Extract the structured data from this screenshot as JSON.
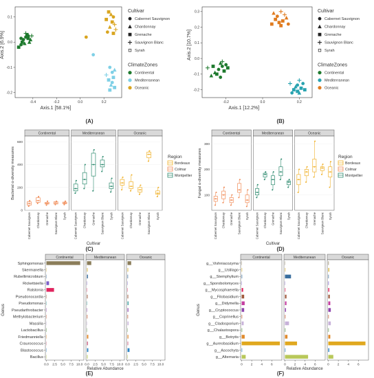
{
  "panel_labels": [
    "(A)",
    "(B)",
    "(C)",
    "(D)",
    "(E)",
    "(F)"
  ],
  "colors": {
    "Continental": "#1f7a2e",
    "Mediterranean": "#7fd0e6",
    "Oceanic": "#d9a520",
    "Mediterranean_B": "#29a3b0",
    "Oceanic_B": "#e07b1f",
    "Bordeaux": "#f0b12a",
    "Colmar": "#f08a55",
    "Montpellier": "#2e8b6f"
  },
  "chart_data": [
    {
      "id": "A",
      "type": "scatter",
      "xlabel": "Axis.1   [58.1%]",
      "ylabel": "Axis.2   [6.9%]",
      "xlim": [
        -0.55,
        0.35
      ],
      "ylim": [
        -0.22,
        0.14
      ],
      "xticks": [
        -0.4,
        -0.2,
        0.0,
        0.2
      ],
      "yticks": [
        0.1,
        0.0,
        -0.1,
        -0.2
      ],
      "xticklabels": [
        "-0.4",
        "-0.2",
        "0.0",
        "0.2"
      ],
      "yticklabels": [
        "0.1",
        "0.0",
        "-0.1",
        "-0.2"
      ],
      "legend_cultivar_title": "Cultivar",
      "legend_cultivar": [
        "Cabernet Sauvignon",
        "Chardonnay",
        "Grenache",
        "Sauvignon Blanc",
        "Syrah"
      ],
      "legend_climate_title": "ClimateZones",
      "legend_climate": [
        "Continental",
        "Mediterranean",
        "Oceanic"
      ],
      "points": [
        {
          "x": -0.46,
          "y": 0.02,
          "c": "Continental",
          "s": "circle"
        },
        {
          "x": -0.48,
          "y": 0.01,
          "c": "Continental",
          "s": "circle"
        },
        {
          "x": -0.44,
          "y": 0.025,
          "c": "Continental",
          "s": "circle"
        },
        {
          "x": -0.5,
          "y": -0.01,
          "c": "Continental",
          "s": "circle"
        },
        {
          "x": -0.43,
          "y": 0.0,
          "c": "Continental",
          "s": "triangle"
        },
        {
          "x": -0.47,
          "y": -0.005,
          "c": "Continental",
          "s": "triangle"
        },
        {
          "x": -0.42,
          "y": 0.01,
          "c": "Continental",
          "s": "triangle"
        },
        {
          "x": -0.49,
          "y": 0.0,
          "c": "Continental",
          "s": "square"
        },
        {
          "x": -0.45,
          "y": 0.03,
          "c": "Continental",
          "s": "square"
        },
        {
          "x": -0.52,
          "y": -0.02,
          "c": "Continental",
          "s": "square"
        },
        {
          "x": -0.41,
          "y": 0.025,
          "c": "Continental",
          "s": "plus"
        },
        {
          "x": -0.46,
          "y": 0.035,
          "c": "Continental",
          "s": "plus"
        },
        {
          "x": -0.44,
          "y": 0.015,
          "c": "Continental",
          "s": "square"
        },
        {
          "x": -0.5,
          "y": 0.015,
          "c": "Continental",
          "s": "circle"
        },
        {
          "x": 0.25,
          "y": -0.1,
          "c": "Mediterranean",
          "s": "circle"
        },
        {
          "x": 0.27,
          "y": -0.12,
          "c": "Mediterranean",
          "s": "circle"
        },
        {
          "x": 0.24,
          "y": -0.15,
          "c": "Mediterranean",
          "s": "square"
        },
        {
          "x": 0.28,
          "y": -0.14,
          "c": "Mediterranean",
          "s": "square"
        },
        {
          "x": 0.26,
          "y": -0.17,
          "c": "Mediterranean",
          "s": "triangle"
        },
        {
          "x": 0.29,
          "y": -0.11,
          "c": "Mediterranean",
          "s": "triangle"
        },
        {
          "x": 0.25,
          "y": -0.19,
          "c": "Mediterranean",
          "s": "square"
        },
        {
          "x": 0.22,
          "y": -0.13,
          "c": "Mediterranean",
          "s": "plus"
        },
        {
          "x": 0.27,
          "y": -0.16,
          "c": "Mediterranean",
          "s": "circle"
        },
        {
          "x": 0.29,
          "y": -0.18,
          "c": "Mediterranean",
          "s": "square"
        },
        {
          "x": 0.11,
          "y": -0.05,
          "c": "Mediterranean",
          "s": "circle"
        },
        {
          "x": 0.24,
          "y": 0.12,
          "c": "Oceanic",
          "s": "square"
        },
        {
          "x": 0.26,
          "y": 0.11,
          "c": "Oceanic",
          "s": "triangle"
        },
        {
          "x": 0.28,
          "y": 0.1,
          "c": "Oceanic",
          "s": "circle"
        },
        {
          "x": 0.22,
          "y": 0.09,
          "c": "Oceanic",
          "s": "square"
        },
        {
          "x": 0.27,
          "y": 0.08,
          "c": "Oceanic",
          "s": "square"
        },
        {
          "x": 0.25,
          "y": 0.06,
          "c": "Oceanic",
          "s": "triangle"
        },
        {
          "x": 0.29,
          "y": 0.07,
          "c": "Oceanic",
          "s": "plus"
        },
        {
          "x": 0.3,
          "y": 0.05,
          "c": "Oceanic",
          "s": "plus"
        },
        {
          "x": 0.23,
          "y": 0.04,
          "c": "Oceanic",
          "s": "circle"
        },
        {
          "x": 0.28,
          "y": 0.035,
          "c": "Oceanic",
          "s": "square"
        },
        {
          "x": 0.05,
          "y": 0.02,
          "c": "Oceanic",
          "s": "circle"
        }
      ]
    },
    {
      "id": "B",
      "type": "scatter",
      "xlabel": "Axis.1   [12.2%]",
      "ylabel": "Axis.2   [10.7%]",
      "xlim": [
        -0.33,
        0.27
      ],
      "ylim": [
        -0.25,
        0.33
      ],
      "xticks": [
        -0.2,
        0.0,
        0.2
      ],
      "yticks": [
        0.3,
        0.2,
        0.1,
        0.0,
        -0.1,
        -0.2
      ],
      "xticklabels": [
        "-0.2",
        "0.0",
        "0.2"
      ],
      "yticklabels": [
        "0.3",
        "0.2",
        "0.1",
        "0.0",
        "-0.1",
        "-0.2"
      ],
      "legend_cultivar_title": "Cultivar",
      "legend_cultivar": [
        "Cabernet Sauvignon",
        "Chardonnay",
        "Grenache",
        "Sauvignon Blanc",
        "Syrah"
      ],
      "legend_climate_title": "ClimateZones",
      "legend_climate": [
        "Continental",
        "Mediterranean",
        "Oceanic"
      ],
      "points": [
        {
          "x": -0.22,
          "y": -0.05,
          "c": "Continental",
          "s": "circle"
        },
        {
          "x": -0.24,
          "y": -0.07,
          "c": "Continental",
          "s": "circle"
        },
        {
          "x": -0.2,
          "y": -0.04,
          "c": "Continental",
          "s": "circle"
        },
        {
          "x": -0.23,
          "y": -0.03,
          "c": "Continental",
          "s": "triangle"
        },
        {
          "x": -0.26,
          "y": -0.09,
          "c": "Continental",
          "s": "triangle"
        },
        {
          "x": -0.21,
          "y": -0.08,
          "c": "Continental",
          "s": "square"
        },
        {
          "x": -0.25,
          "y": -0.1,
          "c": "Continental",
          "s": "square"
        },
        {
          "x": -0.28,
          "y": -0.11,
          "c": "Continental",
          "s": "triangle"
        },
        {
          "x": -0.19,
          "y": -0.06,
          "c": "Continental",
          "s": "square"
        },
        {
          "x": -0.23,
          "y": -0.12,
          "c": "Continental",
          "s": "circle"
        },
        {
          "x": -0.3,
          "y": -0.06,
          "c": "Continental",
          "s": "plus"
        },
        {
          "x": -0.22,
          "y": -0.02,
          "c": "Continental",
          "s": "plus"
        },
        {
          "x": -0.27,
          "y": -0.05,
          "c": "Continental",
          "s": "square"
        },
        {
          "x": 0.19,
          "y": -0.17,
          "c": "Mediterranean_B",
          "s": "circle"
        },
        {
          "x": 0.21,
          "y": -0.19,
          "c": "Mediterranean_B",
          "s": "square"
        },
        {
          "x": 0.17,
          "y": -0.2,
          "c": "Mediterranean_B",
          "s": "square"
        },
        {
          "x": 0.2,
          "y": -0.22,
          "c": "Mediterranean_B",
          "s": "triangle"
        },
        {
          "x": 0.22,
          "y": -0.16,
          "c": "Mediterranean_B",
          "s": "circle"
        },
        {
          "x": 0.18,
          "y": -0.18,
          "c": "Mediterranean_B",
          "s": "triangle"
        },
        {
          "x": 0.15,
          "y": -0.16,
          "c": "Mediterranean_B",
          "s": "plus"
        },
        {
          "x": 0.23,
          "y": -0.2,
          "c": "Mediterranean_B",
          "s": "square"
        },
        {
          "x": 0.16,
          "y": -0.22,
          "c": "Mediterranean_B",
          "s": "circle"
        },
        {
          "x": 0.2,
          "y": -0.14,
          "c": "Mediterranean_B",
          "s": "plus"
        },
        {
          "x": 0.19,
          "y": -0.21,
          "c": "Mediterranean_B",
          "s": "square"
        },
        {
          "x": 0.06,
          "y": 0.29,
          "c": "Oceanic_B",
          "s": "triangle"
        },
        {
          "x": 0.08,
          "y": 0.27,
          "c": "Oceanic_B",
          "s": "circle"
        },
        {
          "x": 0.1,
          "y": 0.3,
          "c": "Oceanic_B",
          "s": "plus"
        },
        {
          "x": 0.12,
          "y": 0.28,
          "c": "Oceanic_B",
          "s": "plus"
        },
        {
          "x": 0.07,
          "y": 0.25,
          "c": "Oceanic_B",
          "s": "square"
        },
        {
          "x": 0.09,
          "y": 0.23,
          "c": "Oceanic_B",
          "s": "square"
        },
        {
          "x": 0.11,
          "y": 0.24,
          "c": "Oceanic_B",
          "s": "square"
        },
        {
          "x": 0.13,
          "y": 0.26,
          "c": "Oceanic_B",
          "s": "triangle"
        },
        {
          "x": 0.05,
          "y": 0.22,
          "c": "Oceanic_B",
          "s": "square"
        },
        {
          "x": 0.14,
          "y": 0.22,
          "c": "Oceanic_B",
          "s": "circle"
        },
        {
          "x": 0.1,
          "y": 0.21,
          "c": "Oceanic_B",
          "s": "square"
        }
      ]
    },
    {
      "id": "C",
      "type": "box",
      "ylabel": "Bacterial α-diversity measures",
      "xlabel": "Cultivar",
      "ylim": [
        0,
        650
      ],
      "yticks": [
        0,
        200,
        400,
        600
      ],
      "yticklabels": [
        "0",
        "200",
        "400",
        "600"
      ],
      "facets": [
        "Continental",
        "Mediterranean",
        "Oceanic"
      ],
      "categories": [
        "Cabernet Sauvignon",
        "Chardonnay",
        "Grenache",
        "Sauvignon Blanc",
        "Syrah"
      ],
      "legend_title": "Region",
      "legend": [
        "Bordeaux",
        "Colmar",
        "Montpellier"
      ],
      "facet_region": {
        "Continental": "Colmar",
        "Mediterranean": "Montpellier",
        "Oceanic": "Bordeaux"
      },
      "boxes": {
        "Continental": [
          [
            35,
            45,
            60,
            75,
            85
          ],
          [
            60,
            70,
            85,
            110,
            120
          ],
          [
            45,
            55,
            60,
            70,
            80
          ],
          [
            50,
            55,
            65,
            75,
            80
          ],
          [
            50,
            58,
            65,
            72,
            80
          ]
        ],
        "Mediterranean": [
          [
            150,
            170,
            190,
            230,
            260
          ],
          [
            190,
            230,
            270,
            330,
            400
          ],
          [
            170,
            300,
            400,
            500,
            530
          ],
          [
            340,
            380,
            400,
            440,
            470
          ],
          [
            160,
            190,
            210,
            240,
            280
          ]
        ],
        "Oceanic": [
          [
            180,
            220,
            240,
            270,
            290
          ],
          [
            170,
            190,
            210,
            250,
            310
          ],
          [
            140,
            160,
            180,
            200,
            220
          ],
          [
            430,
            460,
            490,
            510,
            520
          ],
          [
            120,
            140,
            150,
            170,
            200
          ]
        ]
      }
    },
    {
      "id": "D",
      "type": "box",
      "ylabel": "Fungal α-diversity measures",
      "xlabel": "Cultivar",
      "ylim": [
        40,
        330
      ],
      "yticks": [
        100,
        200,
        300
      ],
      "yticklabels": [
        "100",
        "200",
        "300"
      ],
      "facets": [
        "Continental",
        "Mediterranean",
        "Oceanic"
      ],
      "categories": [
        "Cabernet Sauvignon",
        "Chardonnay",
        "Grenache",
        "Sauvignon Blanc",
        "Syrah"
      ],
      "legend_title": "Region",
      "legend": [
        "Bordeaux",
        "Colmar",
        "Montpellier"
      ],
      "facet_region": {
        "Continental": "Colmar",
        "Mediterranean": "Montpellier",
        "Oceanic": "Bordeaux"
      },
      "boxes": {
        "Continental": [
          [
            60,
            75,
            85,
            95,
            110
          ],
          [
            70,
            85,
            100,
            115,
            130
          ],
          [
            60,
            70,
            80,
            90,
            100
          ],
          [
            90,
            110,
            120,
            145,
            160
          ],
          [
            55,
            70,
            80,
            100,
            120
          ]
        ],
        "Mediterranean": [
          [
            90,
            100,
            110,
            125,
            140
          ],
          [
            160,
            170,
            180,
            185,
            190
          ],
          [
            120,
            140,
            160,
            175,
            190
          ],
          [
            160,
            175,
            190,
            210,
            240
          ],
          [
            130,
            140,
            150,
            155,
            160
          ]
        ],
        "Oceanic": [
          [
            110,
            140,
            160,
            180,
            200
          ],
          [
            150,
            175,
            190,
            200,
            210
          ],
          [
            170,
            190,
            210,
            240,
            310
          ],
          [
            180,
            195,
            205,
            210,
            220
          ],
          [
            130,
            170,
            190,
            210,
            230
          ]
        ]
      }
    },
    {
      "id": "E",
      "type": "bar",
      "orientation": "horizontal",
      "xlabel": "Relative Abundance",
      "ylabel": "Genus",
      "xlim": [
        0,
        11
      ],
      "xticks": [
        0,
        2.5,
        5,
        7.5,
        10
      ],
      "xticklabels": [
        "0.0",
        "2.5",
        "5.0",
        "7.5",
        "10.0"
      ],
      "facets": [
        "Continental",
        "Mediterranean",
        "Oceanic"
      ],
      "categories": [
        "Sphingomonas",
        "Skermanella",
        "Rubellimicrobium",
        "Rickettsiella",
        "Ralstonia",
        "Pseudonocardia",
        "Pseudomonas",
        "Pseudarthrobacter",
        "Methylobacterium",
        "Massilia",
        "Lactobacillus",
        "Friedmanniella",
        "Craurococcus",
        "Blastococcus",
        "Bacillus"
      ],
      "bar_colors": [
        "#8b7d5a",
        "#d9b94a",
        "#3a6e9e",
        "#7b5fc8",
        "#e0245e",
        "#a05a3c",
        "#3fa0a0",
        "#8e44ad",
        "#c65a2f",
        "#c7b2d9",
        "#5f9e4f",
        "#e08a2c",
        "#cc6b8a",
        "#2f86c6",
        "#b8c85a"
      ],
      "values": {
        "Continental": [
          10.2,
          0.0,
          0.05,
          0.8,
          2.3,
          0.05,
          0.0,
          0.05,
          0.0,
          0.0,
          0.1,
          0.0,
          0.0,
          0.0,
          0.0
        ],
        "Mediterranean": [
          1.3,
          0.2,
          0.3,
          0.0,
          0.0,
          0.2,
          0.1,
          0.1,
          0.15,
          0.1,
          0.0,
          0.4,
          0.3,
          0.4,
          0.2
        ],
        "Oceanic": [
          1.1,
          0.2,
          0.15,
          0.0,
          0.0,
          0.2,
          0.3,
          0.25,
          0.15,
          0.3,
          0.0,
          0.25,
          0.2,
          0.6,
          0.1
        ]
      }
    },
    {
      "id": "F",
      "type": "bar",
      "orientation": "horizontal",
      "xlabel": "Relative Abundance",
      "ylabel": "Genus",
      "xlim": [
        0,
        7.8
      ],
      "xticks": [
        0,
        2,
        4,
        6
      ],
      "xticklabels": [
        "0",
        "2",
        "4",
        "6"
      ],
      "facets": [
        "Continental",
        "Mediterranean",
        "Oceanic"
      ],
      "categories": [
        "g__Vishniacozyma",
        "g__Ustilago",
        "g__Stemphylium",
        "g__Sporobolomyces",
        "g__Mycosphaerella",
        "g__Filobasidium",
        "g__Didymella",
        "g__Cryptococcus",
        "g__Coprinellus",
        "g__Cladosporium",
        "g__Chalastospora",
        "g__Botrytis",
        "g__Aureobasidium",
        "g__Ascochyta",
        "g__Alternaria"
      ],
      "bar_colors": [
        "#8b7d5a",
        "#d9b94a",
        "#3a6e9e",
        "#7b5fc8",
        "#e0245e",
        "#a05a3c",
        "#c43fa0",
        "#8e44ad",
        "#c65a2f",
        "#c7b2d9",
        "#5f9e4f",
        "#e08a2c",
        "#e0a820",
        "#2f86c6",
        "#b8c85a"
      ],
      "values": {
        "Continental": [
          0.05,
          0.1,
          0.1,
          0.0,
          0.3,
          0.5,
          0.6,
          0.5,
          0.1,
          0.4,
          0.1,
          0.6,
          7.6,
          0.1,
          0.8
        ],
        "Mediterranean": [
          0.0,
          0.1,
          1.2,
          0.0,
          0.1,
          0.3,
          0.3,
          0.2,
          0.1,
          0.8,
          0.1,
          0.5,
          2.4,
          0.1,
          4.6
        ],
        "Oceanic": [
          0.1,
          0.2,
          0.1,
          0.1,
          0.2,
          0.3,
          0.4,
          0.5,
          0.1,
          0.5,
          0.1,
          0.4,
          7.4,
          0.2,
          1.0
        ]
      }
    }
  ]
}
